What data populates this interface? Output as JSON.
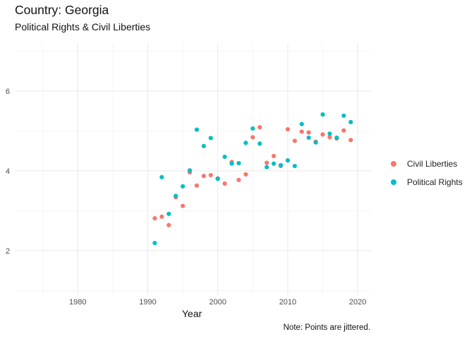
{
  "chart_data": {
    "type": "scatter",
    "title": "Country: Georgia",
    "subtitle": "Political Rights & Civil Liberties",
    "xlabel": "Year",
    "ylabel": "",
    "caption": "Note: Points are jittered.",
    "xlim": [
      1971,
      2022
    ],
    "ylim": [
      0.9,
      7.2
    ],
    "x_ticks": [
      1980,
      1990,
      2000,
      2010,
      2020
    ],
    "y_ticks": [
      2,
      4,
      6
    ],
    "grid": true,
    "legend_position": "right",
    "series": [
      {
        "name": "Civil Liberties",
        "color": "#F8766D",
        "points": [
          [
            1991,
            2.81
          ],
          [
            1992,
            2.85
          ],
          [
            1993,
            2.64
          ],
          [
            1994,
            3.34
          ],
          [
            1995,
            3.12
          ],
          [
            1996,
            3.96
          ],
          [
            1997,
            3.63
          ],
          [
            1998,
            3.87
          ],
          [
            1999,
            3.89
          ],
          [
            2000,
            3.81
          ],
          [
            2001,
            3.68
          ],
          [
            2002,
            4.22
          ],
          [
            2003,
            3.77
          ],
          [
            2004,
            3.91
          ],
          [
            2005,
            4.84
          ],
          [
            2006,
            5.09
          ],
          [
            2007,
            4.2
          ],
          [
            2008,
            4.37
          ],
          [
            2009,
            4.12
          ],
          [
            2010,
            5.04
          ],
          [
            2011,
            4.75
          ],
          [
            2012,
            4.98
          ],
          [
            2013,
            4.96
          ],
          [
            2014,
            4.73
          ],
          [
            2015,
            4.91
          ],
          [
            2016,
            4.84
          ],
          [
            2017,
            4.81
          ],
          [
            2018,
            5.01
          ],
          [
            2019,
            4.77
          ]
        ]
      },
      {
        "name": "Political Rights",
        "color": "#00BFC4",
        "points": [
          [
            1991,
            2.19
          ],
          [
            1992,
            3.84
          ],
          [
            1993,
            2.92
          ],
          [
            1994,
            3.37
          ],
          [
            1995,
            3.61
          ],
          [
            1996,
            4.01
          ],
          [
            1997,
            5.03
          ],
          [
            1998,
            4.62
          ],
          [
            1999,
            4.82
          ],
          [
            2000,
            3.8
          ],
          [
            2001,
            4.35
          ],
          [
            2002,
            4.18
          ],
          [
            2003,
            4.19
          ],
          [
            2004,
            4.7
          ],
          [
            2005,
            5.06
          ],
          [
            2006,
            4.68
          ],
          [
            2007,
            4.09
          ],
          [
            2008,
            4.18
          ],
          [
            2009,
            4.14
          ],
          [
            2010,
            4.26
          ],
          [
            2011,
            4.12
          ],
          [
            2012,
            5.17
          ],
          [
            2013,
            4.83
          ],
          [
            2014,
            4.71
          ],
          [
            2015,
            5.41
          ],
          [
            2016,
            4.93
          ],
          [
            2017,
            4.83
          ],
          [
            2018,
            5.38
          ],
          [
            2019,
            5.22
          ]
        ]
      }
    ]
  }
}
